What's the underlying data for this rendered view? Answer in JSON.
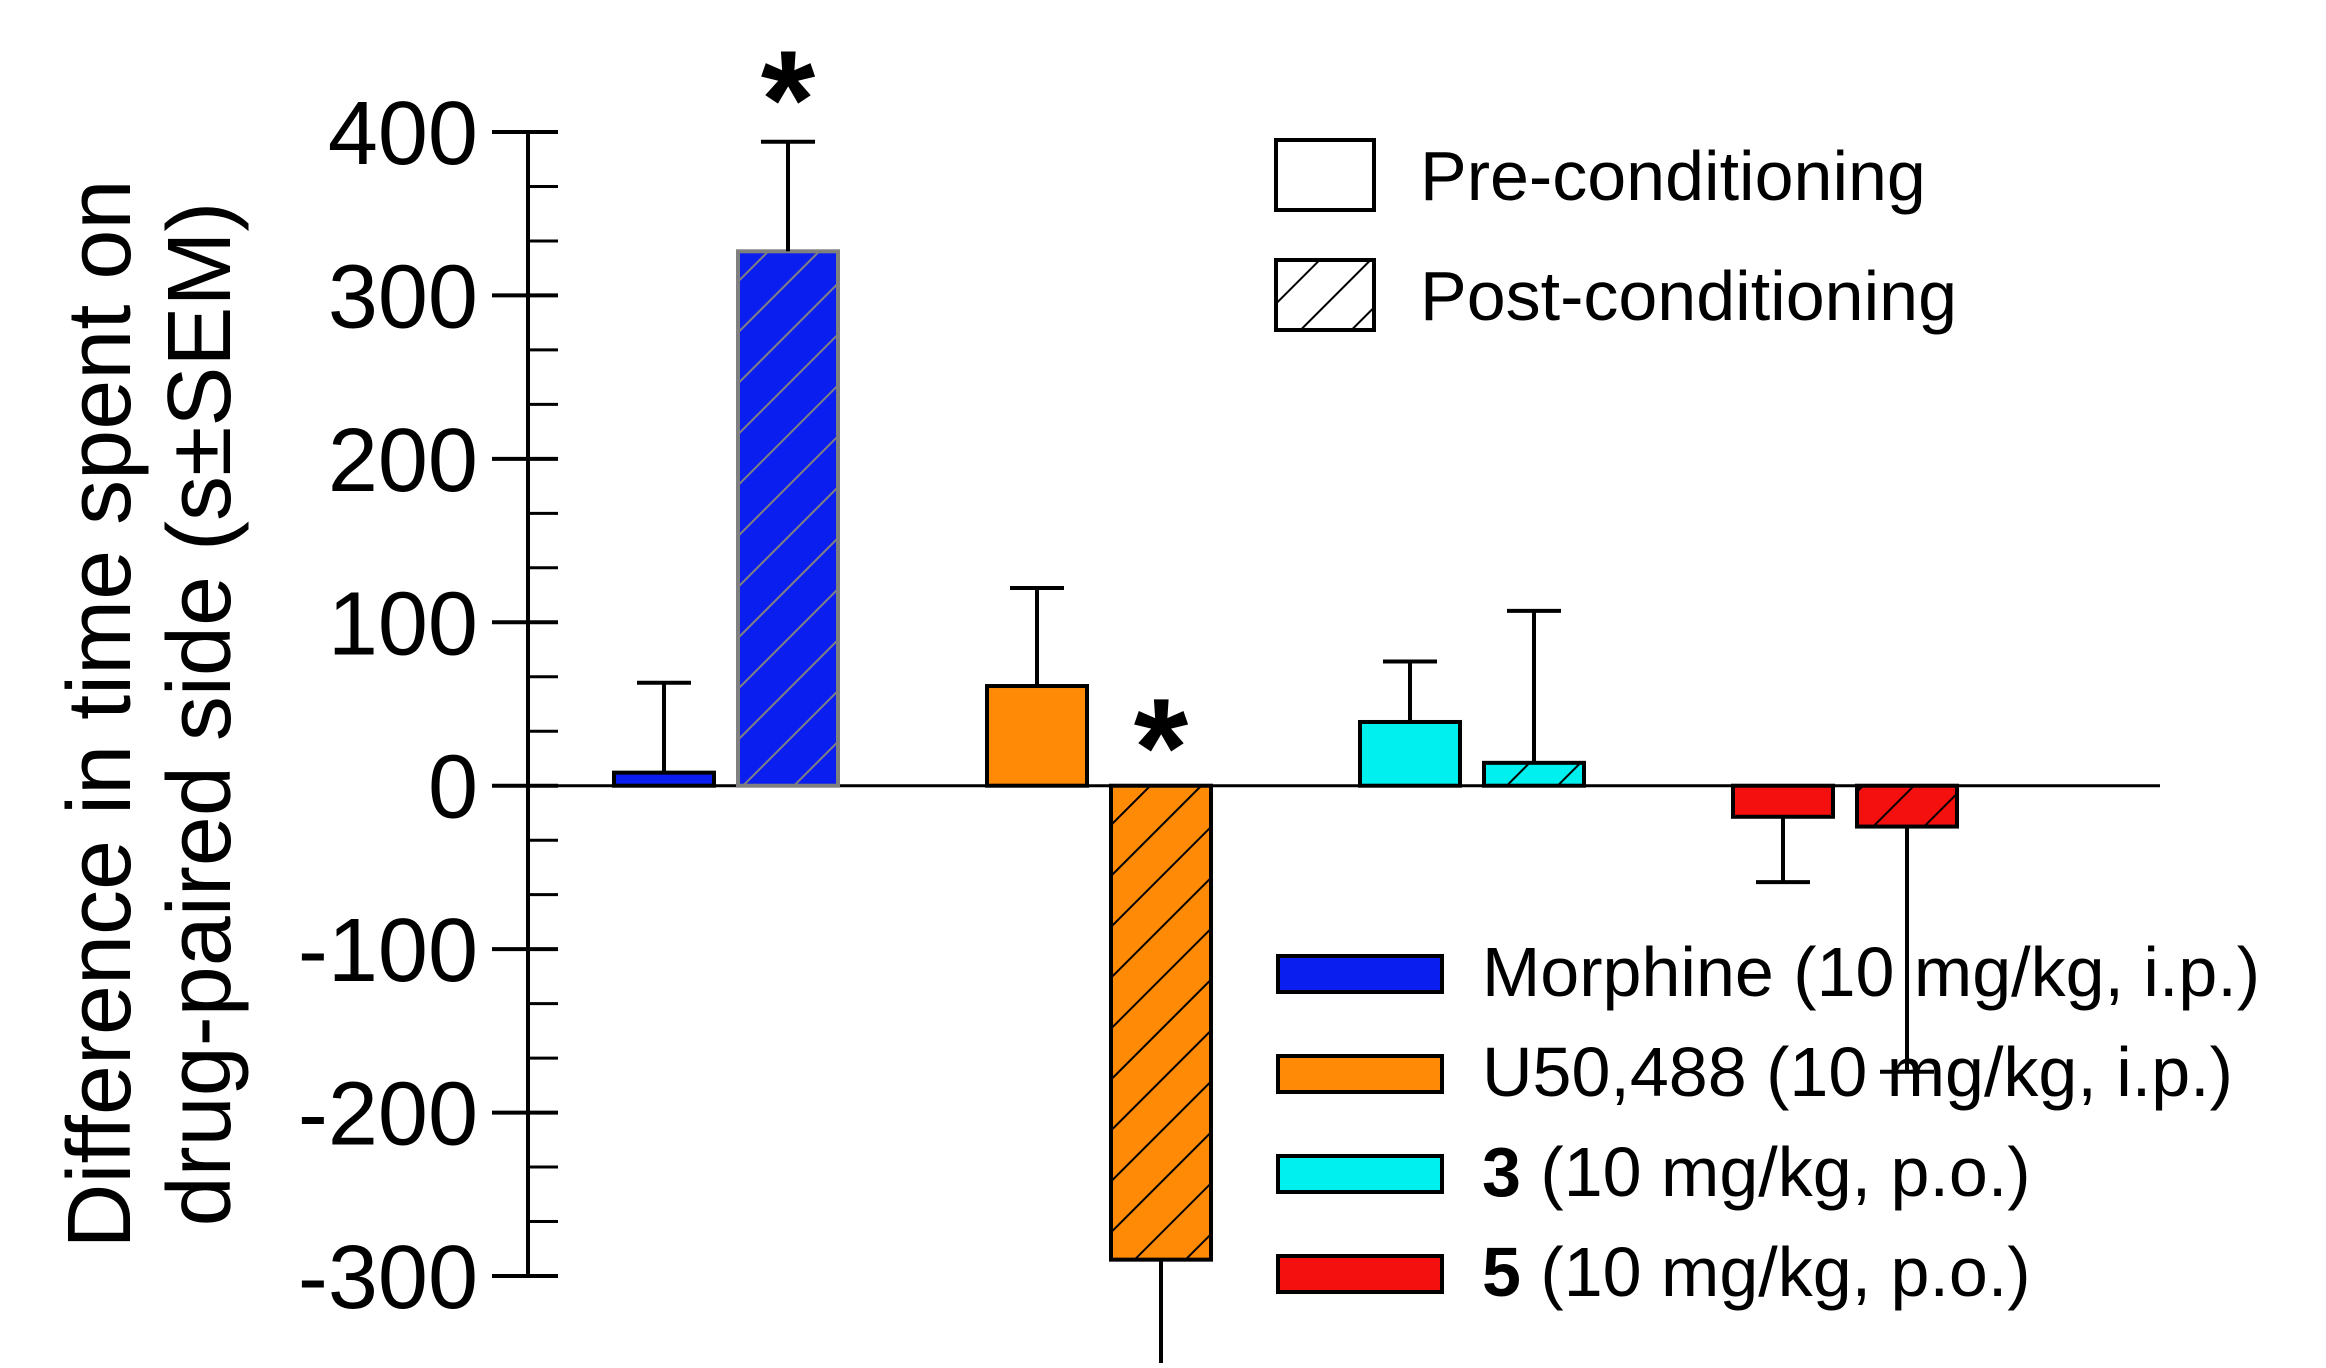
{
  "chart_data": {
    "type": "bar",
    "title": "",
    "ylabel_lines": [
      "Difference in time spent on",
      "drug-paired side (s±SEM)"
    ],
    "xlabel": "",
    "ylim": [
      -300,
      400
    ],
    "yticks": [
      400,
      300,
      200,
      100,
      0,
      -100,
      -200,
      -300
    ],
    "ytick_labels": [
      "400",
      "300",
      "200",
      "100",
      "0",
      "-100",
      "-200",
      "-300"
    ],
    "minor_tick_step": 33.33,
    "conditions": [
      {
        "name": "Pre-conditioning",
        "pattern": "none"
      },
      {
        "name": "Post-conditioning",
        "pattern": "hatch"
      }
    ],
    "groups": [
      {
        "key": "morphine",
        "legend_bold": "",
        "legend_text": "Morphine (10 mg/kg, i.p.)",
        "color": "#0b1ef0",
        "bars": [
          {
            "condition": "Pre-conditioning",
            "value": 8,
            "error": 55,
            "significant": false
          },
          {
            "condition": "Post-conditioning",
            "value": 327,
            "error": 67,
            "significant": true
          }
        ]
      },
      {
        "key": "u50488",
        "legend_bold": "",
        "legend_text": "U50,488 (10 mg/kg, i.p.)",
        "color": "#ff8a05",
        "bars": [
          {
            "condition": "Pre-conditioning",
            "value": 61,
            "error": 60,
            "significant": false
          },
          {
            "condition": "Post-conditioning",
            "value": -290,
            "error": 67,
            "significant": true
          }
        ]
      },
      {
        "key": "compound3",
        "legend_bold": "3",
        "legend_text": " (10 mg/kg, p.o.)",
        "color": "#00f0f0",
        "bars": [
          {
            "condition": "Pre-conditioning",
            "value": 39,
            "error": 37,
            "significant": false
          },
          {
            "condition": "Post-conditioning",
            "value": 14,
            "error": 93,
            "significant": false
          }
        ]
      },
      {
        "key": "compound5",
        "legend_bold": "5",
        "legend_text": " (10 mg/kg, p.o.)",
        "color": "#f51010",
        "bars": [
          {
            "condition": "Pre-conditioning",
            "value": -19,
            "error": 40,
            "significant": false
          },
          {
            "condition": "Post-conditioning",
            "value": -25,
            "error": 150,
            "significant": false
          }
        ]
      }
    ],
    "significance_marker": "*",
    "legend_position": "right"
  }
}
